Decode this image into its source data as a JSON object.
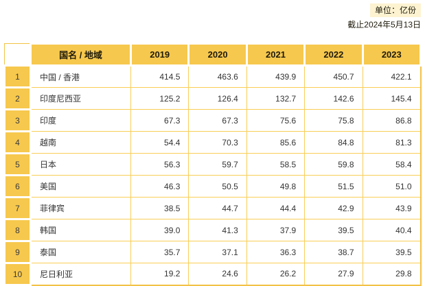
{
  "page": {
    "unit_label": "单位：亿份",
    "as_of_label": "截止2024年5月13日"
  },
  "chart_data": {
    "type": "table",
    "columns": [
      "",
      "国名 / 地域",
      "2019",
      "2020",
      "2021",
      "2022",
      "2023"
    ],
    "rows": [
      {
        "rank": "1",
        "name": "中国 / 香港",
        "values": [
          "414.5",
          "463.6",
          "439.9",
          "450.7",
          "422.1"
        ]
      },
      {
        "rank": "2",
        "name": "印度尼西亚",
        "values": [
          "125.2",
          "126.4",
          "132.7",
          "142.6",
          "145.4"
        ]
      },
      {
        "rank": "3",
        "name": "印度",
        "values": [
          "67.3",
          "67.3",
          "75.6",
          "75.8",
          "86.8"
        ]
      },
      {
        "rank": "4",
        "name": "越南",
        "values": [
          "54.4",
          "70.3",
          "85.6",
          "84.8",
          "81.3"
        ]
      },
      {
        "rank": "5",
        "name": "日本",
        "values": [
          "56.3",
          "59.7",
          "58.5",
          "59.8",
          "58.4"
        ]
      },
      {
        "rank": "6",
        "name": "美国",
        "values": [
          "46.3",
          "50.5",
          "49.8",
          "51.5",
          "51.0"
        ]
      },
      {
        "rank": "7",
        "name": "菲律宾",
        "values": [
          "38.5",
          "44.7",
          "44.4",
          "42.9",
          "43.9"
        ]
      },
      {
        "rank": "8",
        "name": "韩国",
        "values": [
          "39.0",
          "41.3",
          "37.9",
          "39.5",
          "40.4"
        ]
      },
      {
        "rank": "9",
        "name": "泰国",
        "values": [
          "35.7",
          "37.1",
          "36.3",
          "38.7",
          "39.5"
        ]
      },
      {
        "rank": "10",
        "name": "尼日利亚",
        "values": [
          "19.2",
          "24.6",
          "26.2",
          "27.9",
          "29.8"
        ]
      }
    ]
  },
  "colors": {
    "gold": "#f6c84d",
    "grid_gold": "#f9cd55",
    "outer_gold": "#f3c246",
    "unit_bg": "#fdf3d1",
    "text": "#333333",
    "header_text": "#1f1b0c"
  }
}
